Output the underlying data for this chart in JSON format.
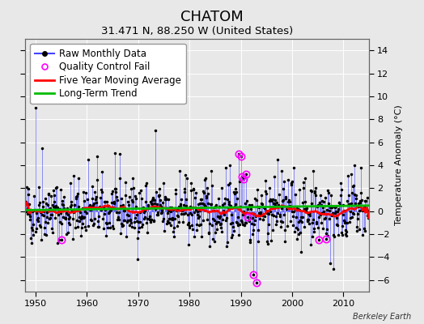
{
  "title": "CHATOM",
  "subtitle": "31.471 N, 88.250 W (United States)",
  "ylabel_right": "Temperature Anomaly (°C)",
  "watermark": "Berkeley Earth",
  "ylim": [
    -7,
    15
  ],
  "yticks": [
    -6,
    -4,
    -2,
    0,
    2,
    4,
    6,
    8,
    10,
    12,
    14
  ],
  "xlim": [
    1948,
    2015
  ],
  "xticks": [
    1950,
    1960,
    1970,
    1980,
    1990,
    2000,
    2010
  ],
  "start_year": 1948,
  "end_year": 2014,
  "bg_color": "#e8e8e8",
  "line_color_raw": "#4444ff",
  "dot_color_raw": "#000000",
  "line_color_mavg": "#ff0000",
  "line_color_trend": "#00bb00",
  "qc_fail_color": "#ff00ff",
  "legend_fontsize": 8.5,
  "title_fontsize": 13,
  "subtitle_fontsize": 9.5,
  "seed": 42
}
